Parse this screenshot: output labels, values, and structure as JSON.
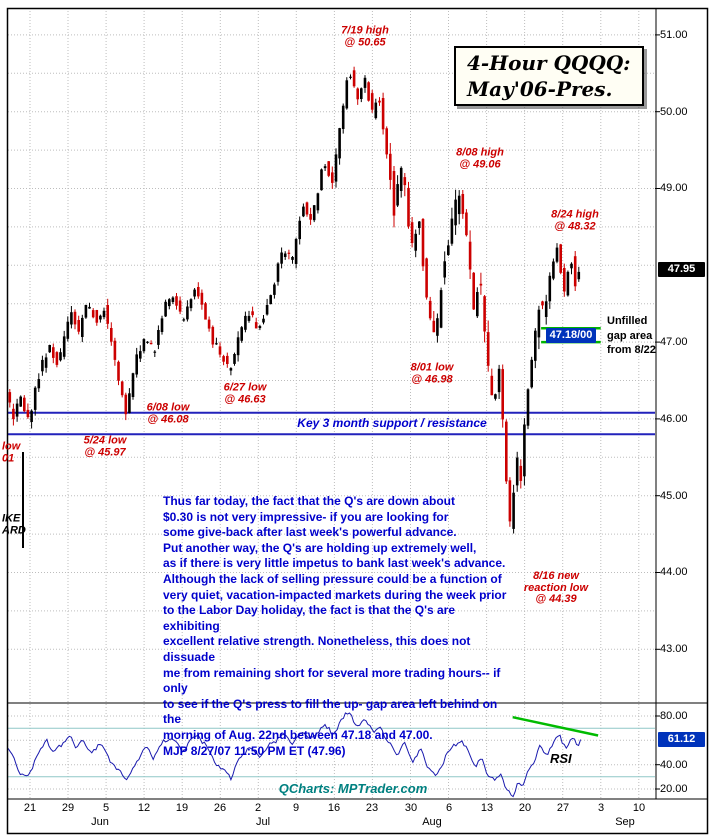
{
  "title": {
    "line1": "4-Hour QQQQ:",
    "line2": "May'06-Pres."
  },
  "watermark": "QCharts: MPTrader.com",
  "key_level_label": "Key 3 month support / resistance",
  "gap_note": "Unfilled\ngap area\nfrom 8/22",
  "gap_badge": "47.18/00",
  "last_price": "47.95",
  "rsi": {
    "label": "RSI",
    "value": "61.12"
  },
  "commentary": "Thus far today, the fact that the Q's are down about\n$0.30 is not very impressive- if you are looking for\nsome give-back after last week's powerful advance.\nPut another way, the Q's are holding up extremely well,\nas if there is very little impetus to bank last week's advance.\nAlthough the lack of selling pressure could be a function of\nvery quiet, vacation-impacted markets during the week prior\nto the Labor Day holiday, the fact is that the Q's are exhibiting\nexcellent relative strength. Nonetheless, this does not dissuade\nme from remaining short for several more trading hours-- if only\nto see if the Q's press to fill the up- gap area left behind on the\nmorning of Aug. 22nd between 47.18 and 47.00.\nMJP 8/27/07 11:50 PM ET   (47.96)",
  "colors": {
    "up_bar": "#000000",
    "down_bar": "#cc0000",
    "support_line": "#2222bb",
    "gap_line": "#00b400",
    "rsi_line": "#1a1aae",
    "trend_line": "#00bb00",
    "annotation_red": "#cc0000",
    "text_blue": "#0000cc",
    "badge_price_bg": "#000000",
    "badge_rsi_bg": "#0033bb",
    "watermark_teal": "#008080"
  },
  "chart_data": {
    "type": "candlestick",
    "title": "4-Hour QQQQ: May'06-Pres.",
    "legend": "none",
    "grid": true,
    "price_axis": {
      "ticks": [
        51.0,
        50.0,
        49.0,
        47.0,
        46.0,
        45.0,
        44.0,
        43.0
      ],
      "range": [
        42.3,
        51.35
      ],
      "last_price": 47.95
    },
    "x_axis": {
      "day_labels": [
        "21",
        "29",
        "5",
        "12",
        "19",
        "26",
        "2",
        "9",
        "16",
        "23",
        "30",
        "6",
        "13",
        "20",
        "27",
        "3",
        "10"
      ],
      "months": [
        {
          "label": "Jun",
          "t": 0.142
        },
        {
          "label": "Jul",
          "t": 0.394
        },
        {
          "label": "Aug",
          "t": 0.655
        },
        {
          "label": "Sep",
          "t": 0.954
        }
      ]
    },
    "support_resistance_lines": [
      46.08,
      45.8
    ],
    "gap_lines": {
      "prices": [
        47.18,
        47.0
      ],
      "t0": 0.824,
      "t1": 0.916
    },
    "key_swings": {
      "high_7_19": 50.65,
      "high_8_08": 49.06,
      "high_8_24": 48.32,
      "low_5_24": 45.97,
      "low_6_08": 46.08,
      "low_6_27": 46.63,
      "low_8_01": 46.98,
      "low_8_16": 44.39,
      "close": 47.95
    },
    "annotations": [
      {
        "name": "high-7-19",
        "text": "7/19 high\n@ 50.65",
        "t": 0.552,
        "price": 50.97,
        "color": "red",
        "align": "center"
      },
      {
        "name": "high-8-08",
        "text": "8/08 high\n@ 49.06",
        "t": 0.73,
        "price": 49.38,
        "color": "red",
        "align": "center"
      },
      {
        "name": "high-8-24",
        "text": "8/24 high\n@ 48.32",
        "t": 0.876,
        "price": 48.58,
        "color": "red",
        "align": "center"
      },
      {
        "name": "low-8-01",
        "text": "8/01 low\n@ 46.98",
        "t": 0.655,
        "price": 46.58,
        "color": "red",
        "align": "center"
      },
      {
        "name": "low-6-27",
        "text": "6/27 low\n@ 46.63",
        "t": 0.366,
        "price": 46.33,
        "color": "red",
        "align": "center"
      },
      {
        "name": "low-6-08",
        "text": "6/08 low\n@ 46.08",
        "t": 0.247,
        "price": 46.06,
        "color": "red",
        "align": "center"
      },
      {
        "name": "low-5-24",
        "text": "5/24 low\n@ 45.97",
        "t": 0.15,
        "price": 45.63,
        "color": "red",
        "align": "center"
      },
      {
        "name": "low-8-16",
        "text": "8/16 new\nreaction low\n@ 44.39",
        "t": 0.847,
        "price": 43.8,
        "color": "red",
        "align": "center"
      },
      {
        "name": "left-edge-cut-red",
        "text": "low\n01",
        "t": -0.008,
        "price": 45.55,
        "color": "red",
        "align": "left"
      },
      {
        "name": "left-edge-cut-black",
        "text": "IKE\nARD",
        "t": -0.008,
        "price": 44.62,
        "color": "black",
        "align": "left"
      }
    ],
    "price_path": [
      [
        0.0,
        46.35
      ],
      [
        0.01,
        46.0
      ],
      [
        0.022,
        46.25
      ],
      [
        0.035,
        45.97
      ],
      [
        0.05,
        46.55
      ],
      [
        0.065,
        46.95
      ],
      [
        0.08,
        46.7
      ],
      [
        0.1,
        47.45
      ],
      [
        0.112,
        47.1
      ],
      [
        0.125,
        47.55
      ],
      [
        0.14,
        47.25
      ],
      [
        0.152,
        47.45
      ],
      [
        0.168,
        46.75
      ],
      [
        0.185,
        46.08
      ],
      [
        0.2,
        46.75
      ],
      [
        0.215,
        47.1
      ],
      [
        0.228,
        46.85
      ],
      [
        0.245,
        47.45
      ],
      [
        0.26,
        47.6
      ],
      [
        0.272,
        47.25
      ],
      [
        0.29,
        47.7
      ],
      [
        0.305,
        47.45
      ],
      [
        0.318,
        47.0
      ],
      [
        0.332,
        46.85
      ],
      [
        0.345,
        46.63
      ],
      [
        0.36,
        47.1
      ],
      [
        0.375,
        47.4
      ],
      [
        0.39,
        47.15
      ],
      [
        0.41,
        47.6
      ],
      [
        0.428,
        48.25
      ],
      [
        0.442,
        48.05
      ],
      [
        0.458,
        48.8
      ],
      [
        0.472,
        48.55
      ],
      [
        0.49,
        49.35
      ],
      [
        0.505,
        49.1
      ],
      [
        0.518,
        49.9
      ],
      [
        0.53,
        50.6
      ],
      [
        0.542,
        50.1
      ],
      [
        0.555,
        50.45
      ],
      [
        0.565,
        49.95
      ],
      [
        0.575,
        50.25
      ],
      [
        0.588,
        49.5
      ],
      [
        0.6,
        48.7
      ],
      [
        0.612,
        49.3
      ],
      [
        0.625,
        48.2
      ],
      [
        0.638,
        48.6
      ],
      [
        0.652,
        47.4
      ],
      [
        0.663,
        47.0
      ],
      [
        0.675,
        48.0
      ],
      [
        0.69,
        48.55
      ],
      [
        0.7,
        49.0
      ],
      [
        0.712,
        48.3
      ],
      [
        0.722,
        47.4
      ],
      [
        0.732,
        47.9
      ],
      [
        0.742,
        46.8
      ],
      [
        0.752,
        46.2
      ],
      [
        0.762,
        46.7
      ],
      [
        0.772,
        45.4
      ],
      [
        0.78,
        44.45
      ],
      [
        0.788,
        45.6
      ],
      [
        0.795,
        45.1
      ],
      [
        0.805,
        46.3
      ],
      [
        0.815,
        46.9
      ],
      [
        0.822,
        47.55
      ],
      [
        0.832,
        47.3
      ],
      [
        0.845,
        48.05
      ],
      [
        0.852,
        48.3
      ],
      [
        0.862,
        47.6
      ],
      [
        0.872,
        48.15
      ],
      [
        0.88,
        47.75
      ],
      [
        0.885,
        47.95
      ]
    ],
    "rsi_panel": {
      "type": "line",
      "value": 61.12,
      "ticks": [
        80.0,
        40.0,
        20.0
      ],
      "range": [
        12,
        90
      ],
      "trendline": {
        "t0": 0.78,
        "r0": 79,
        "t1": 0.912,
        "r1": 64
      },
      "path": [
        [
          0.0,
          55
        ],
        [
          0.008,
          45
        ],
        [
          0.018,
          34
        ],
        [
          0.03,
          29
        ],
        [
          0.045,
          48
        ],
        [
          0.06,
          60
        ],
        [
          0.072,
          50
        ],
        [
          0.085,
          58
        ],
        [
          0.095,
          64
        ],
        [
          0.105,
          52
        ],
        [
          0.115,
          62
        ],
        [
          0.128,
          48
        ],
        [
          0.14,
          58
        ],
        [
          0.152,
          50
        ],
        [
          0.165,
          38
        ],
        [
          0.185,
          28
        ],
        [
          0.2,
          44
        ],
        [
          0.212,
          54
        ],
        [
          0.225,
          46
        ],
        [
          0.24,
          58
        ],
        [
          0.255,
          62
        ],
        [
          0.268,
          50
        ],
        [
          0.282,
          60
        ],
        [
          0.295,
          64
        ],
        [
          0.31,
          52
        ],
        [
          0.322,
          40
        ],
        [
          0.345,
          30
        ],
        [
          0.358,
          44
        ],
        [
          0.372,
          54
        ],
        [
          0.388,
          46
        ],
        [
          0.405,
          56
        ],
        [
          0.425,
          66
        ],
        [
          0.44,
          58
        ],
        [
          0.455,
          68
        ],
        [
          0.47,
          60
        ],
        [
          0.488,
          74
        ],
        [
          0.502,
          64
        ],
        [
          0.515,
          76
        ],
        [
          0.528,
          84
        ],
        [
          0.54,
          70
        ],
        [
          0.552,
          78
        ],
        [
          0.565,
          66
        ],
        [
          0.575,
          72
        ],
        [
          0.588,
          58
        ],
        [
          0.6,
          48
        ],
        [
          0.612,
          57
        ],
        [
          0.625,
          42
        ],
        [
          0.638,
          52
        ],
        [
          0.652,
          36
        ],
        [
          0.663,
          30
        ],
        [
          0.675,
          46
        ],
        [
          0.688,
          55
        ],
        [
          0.7,
          60
        ],
        [
          0.712,
          50
        ],
        [
          0.722,
          38
        ],
        [
          0.732,
          46
        ],
        [
          0.742,
          32
        ],
        [
          0.752,
          26
        ],
        [
          0.762,
          34
        ],
        [
          0.772,
          18
        ],
        [
          0.78,
          13
        ],
        [
          0.788,
          27
        ],
        [
          0.795,
          22
        ],
        [
          0.805,
          37
        ],
        [
          0.815,
          45
        ],
        [
          0.822,
          54
        ],
        [
          0.832,
          49
        ],
        [
          0.845,
          59
        ],
        [
          0.852,
          65
        ],
        [
          0.862,
          54
        ],
        [
          0.872,
          62
        ],
        [
          0.88,
          57
        ],
        [
          0.885,
          61.12
        ]
      ]
    }
  }
}
